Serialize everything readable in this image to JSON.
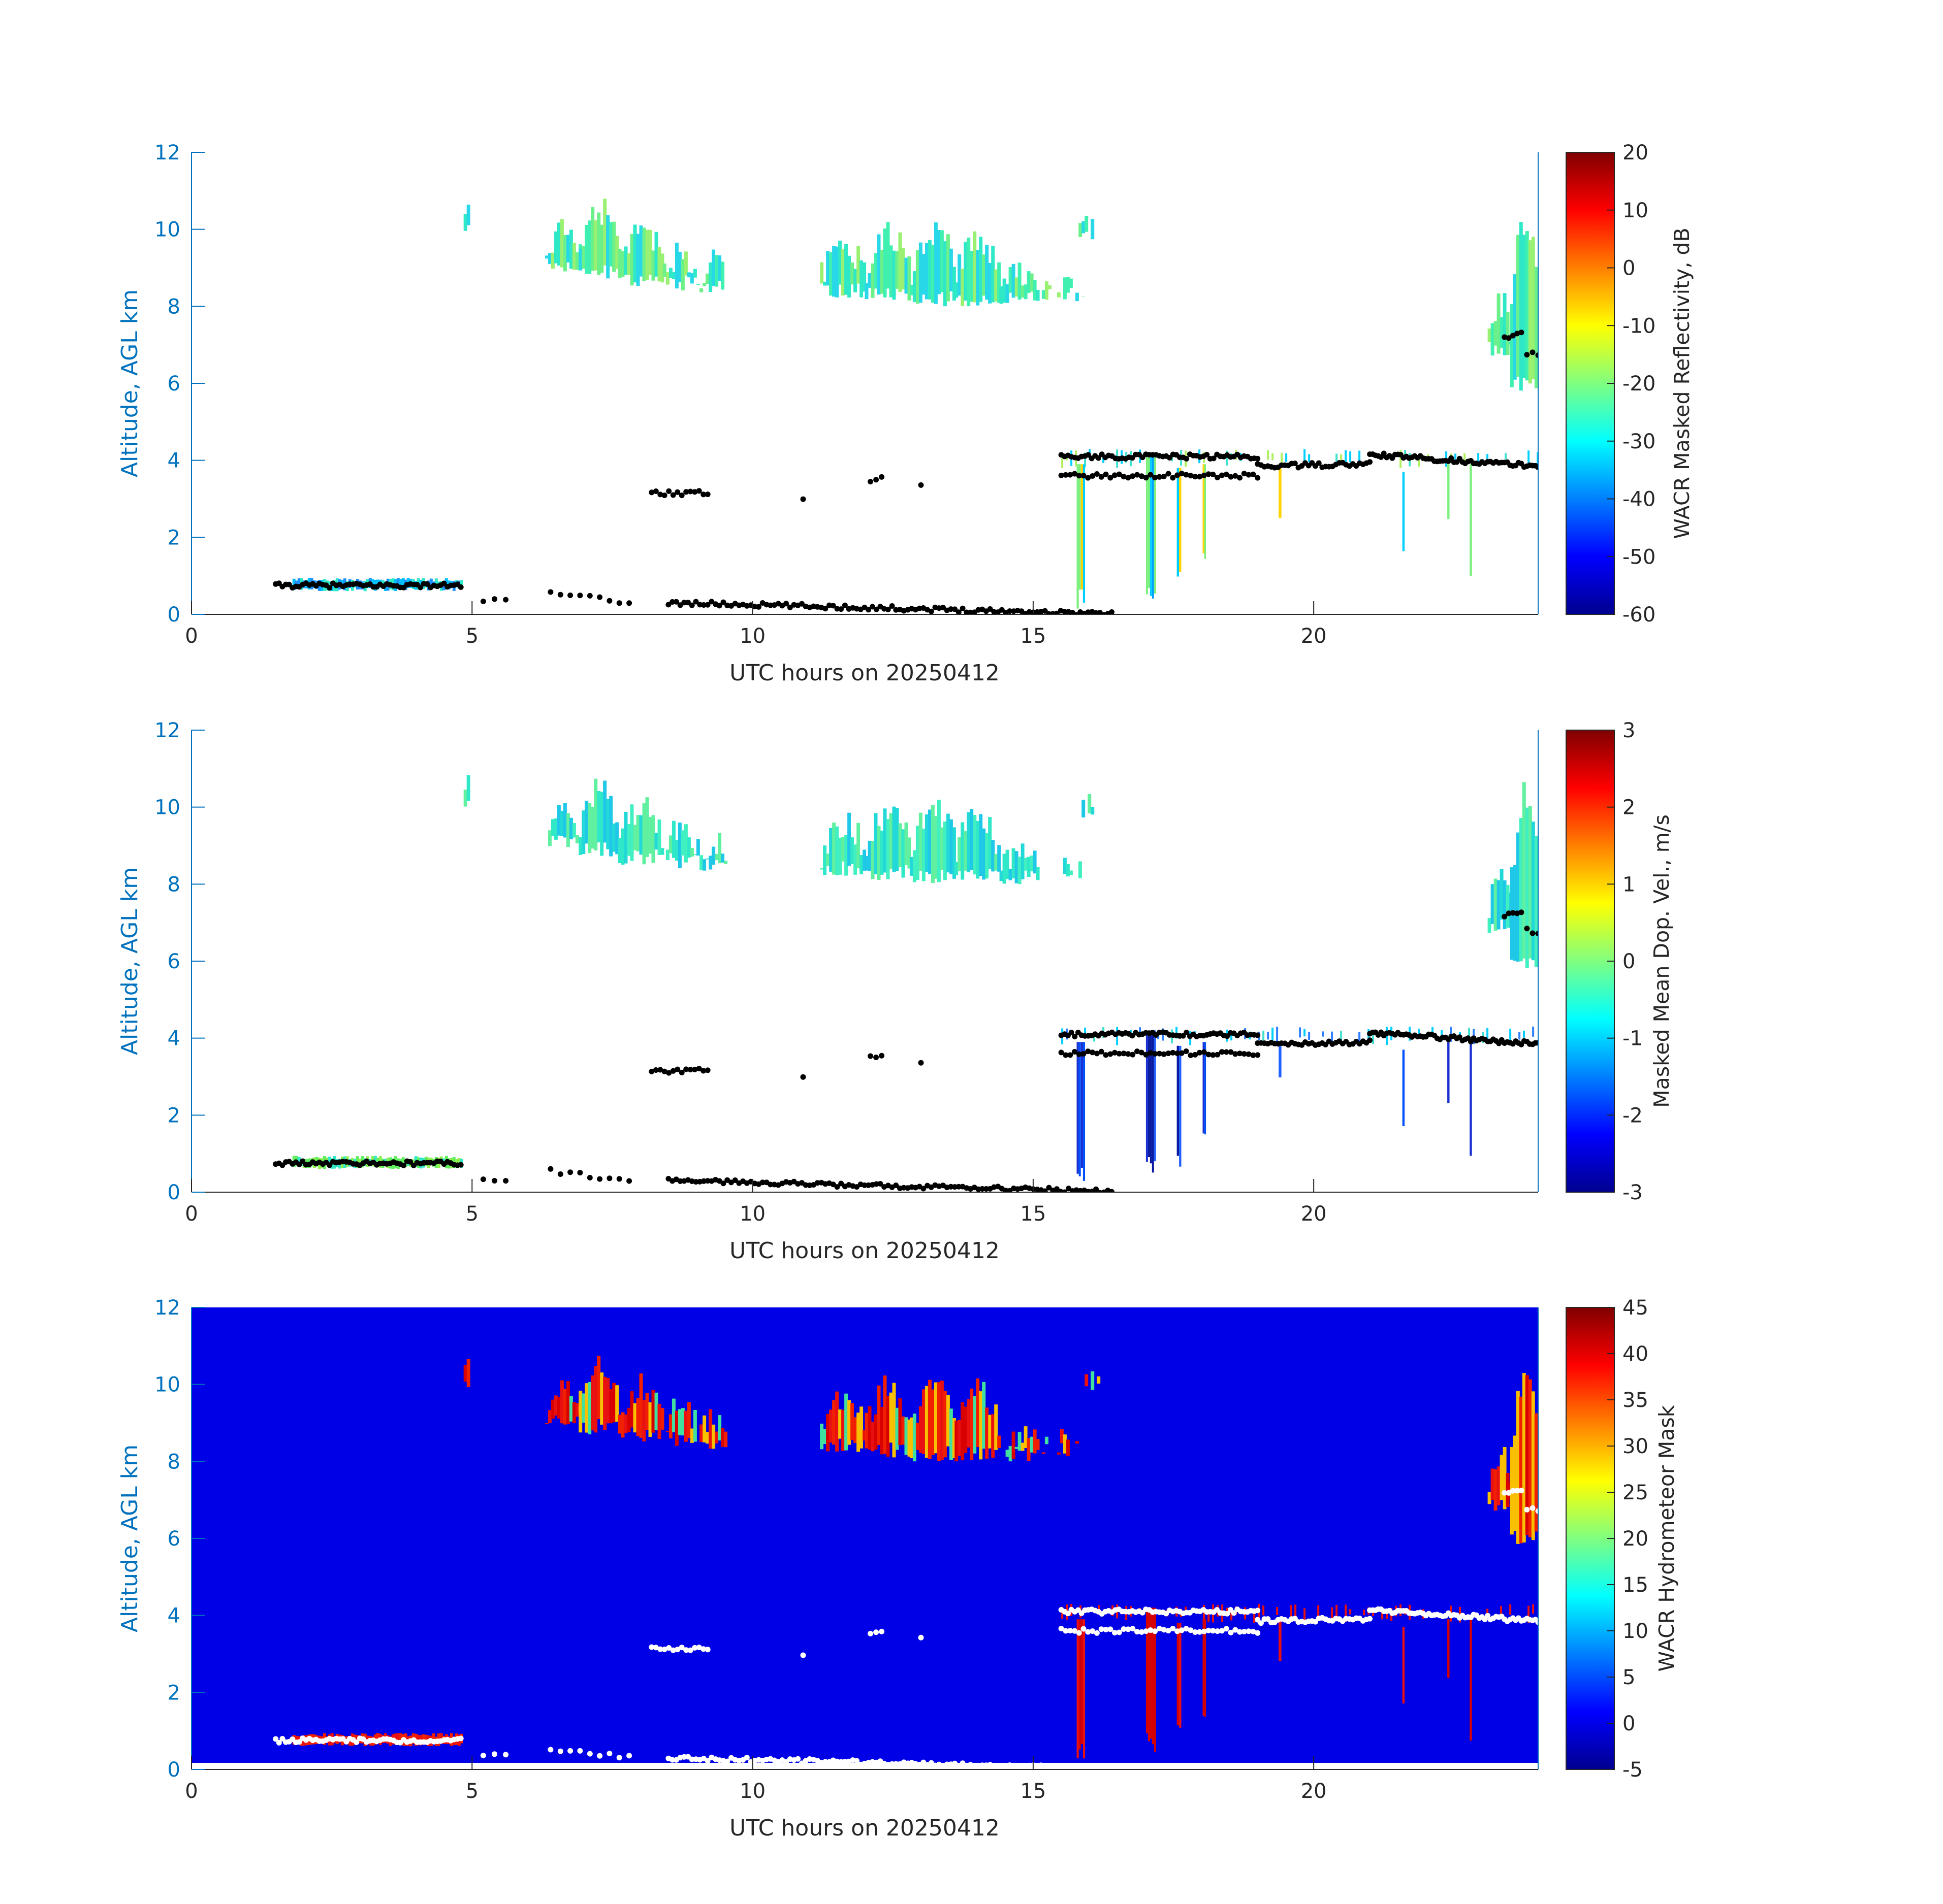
{
  "figure": {
    "type": "radar-time-height",
    "date": "20250412"
  },
  "chart_data": [
    {
      "type": "heatmap",
      "field": "reflectivity",
      "xlabel": "UTC hours on 20250412",
      "ylabel": "Altitude, AGL km",
      "xlim": [
        0,
        24
      ],
      "ylim": [
        0,
        12
      ],
      "xticks": [
        0,
        5,
        10,
        15,
        20
      ],
      "yticks": [
        0,
        2,
        4,
        6,
        8,
        10,
        12
      ],
      "background": "#ffffff",
      "colorbar": {
        "label": "WACR Masked Reflectivity, dB",
        "colormap": "jet",
        "range": [
          -60,
          20
        ],
        "ticks": [
          -60,
          -50,
          -40,
          -30,
          -20,
          -10,
          0,
          10,
          20
        ]
      }
    },
    {
      "type": "heatmap",
      "field": "doppler_velocity",
      "xlabel": "UTC hours on 20250412",
      "ylabel": "Altitude, AGL km",
      "xlim": [
        0,
        24
      ],
      "ylim": [
        0,
        12
      ],
      "xticks": [
        0,
        5,
        10,
        15,
        20
      ],
      "yticks": [
        0,
        2,
        4,
        6,
        8,
        10,
        12
      ],
      "background": "#ffffff",
      "colorbar": {
        "label": "Masked Mean Dop. Vel., m/s",
        "colormap": "jet",
        "range": [
          -3,
          3
        ],
        "ticks": [
          -3,
          -2,
          -1,
          0,
          1,
          2,
          3
        ]
      }
    },
    {
      "type": "heatmap",
      "field": "hydrometeor_mask",
      "xlabel": "UTC hours on 20250412",
      "ylabel": "Altitude, AGL km",
      "xlim": [
        0,
        24
      ],
      "ylim": [
        0,
        12
      ],
      "xticks": [
        0,
        5,
        10,
        15,
        20
      ],
      "yticks": [
        0,
        2,
        4,
        6,
        8,
        10,
        12
      ],
      "background": "#0000E6",
      "colorbar": {
        "label": "WACR Hydrometeor Mask",
        "colormap": "jet",
        "range": [
          -5,
          45
        ],
        "ticks": [
          -5,
          0,
          5,
          10,
          15,
          20,
          25,
          30,
          35,
          40,
          45
        ]
      }
    }
  ],
  "cloud_features": {
    "upper_cirrus": [
      {
        "t0": 4.85,
        "t1": 4.95,
        "z0": 9.9,
        "z1": 11.2
      },
      {
        "t0": 6.3,
        "t1": 6.9,
        "z0": 8.9,
        "z1": 10.5
      },
      {
        "t0": 6.9,
        "t1": 7.6,
        "z0": 8.7,
        "z1": 10.9
      },
      {
        "t0": 7.6,
        "t1": 8.4,
        "z0": 8.5,
        "z1": 10.4
      },
      {
        "t0": 8.4,
        "t1": 9.0,
        "z0": 8.4,
        "z1": 9.8
      },
      {
        "t0": 9.0,
        "t1": 9.5,
        "z0": 8.3,
        "z1": 9.5
      },
      {
        "t0": 11.2,
        "t1": 12.0,
        "z0": 8.2,
        "z1": 10.0
      },
      {
        "t0": 12.0,
        "t1": 12.8,
        "z0": 8.1,
        "z1": 10.3
      },
      {
        "t0": 12.8,
        "t1": 13.6,
        "z0": 8.0,
        "z1": 10.4
      },
      {
        "t0": 13.6,
        "t1": 14.4,
        "z0": 8.0,
        "z1": 10.2
      },
      {
        "t0": 14.4,
        "t1": 15.1,
        "z0": 8.0,
        "z1": 9.2
      },
      {
        "t0": 15.1,
        "t1": 15.9,
        "z0": 8.1,
        "z1": 8.9
      },
      {
        "t0": 15.7,
        "t1": 16.2,
        "z0": 9.7,
        "z1": 10.4
      },
      {
        "t0": 23.1,
        "t1": 23.5,
        "z0": 6.7,
        "z1": 8.5
      },
      {
        "t0": 23.5,
        "t1": 24.0,
        "z0": 5.8,
        "z1": 10.7
      }
    ],
    "low_layer": [
      {
        "t0": 1.8,
        "t1": 4.8,
        "z0": 0.6,
        "z1": 0.95
      }
    ],
    "fallstreaks": [
      {
        "t": 15.85,
        "z0": 0.1,
        "z1": 3.9,
        "w": 0.15
      },
      {
        "t": 17.1,
        "z0": 0.4,
        "z1": 4.2,
        "w": 0.18
      },
      {
        "t": 17.6,
        "z0": 0.6,
        "z1": 3.8,
        "w": 0.08
      },
      {
        "t": 18.05,
        "z0": 1.2,
        "z1": 3.9,
        "w": 0.06
      },
      {
        "t": 19.4,
        "z0": 2.5,
        "z1": 3.9,
        "w": 0.05
      },
      {
        "t": 21.6,
        "z0": 1.3,
        "z1": 3.7,
        "w": 0.04
      },
      {
        "t": 22.4,
        "z0": 2.0,
        "z1": 3.9,
        "w": 0.04
      },
      {
        "t": 22.8,
        "z0": 0.7,
        "z1": 3.9,
        "w": 0.04
      }
    ],
    "mid_layer": [
      {
        "t0": 15.5,
        "t1": 24.0,
        "z0": 3.8,
        "z1": 4.3
      }
    ]
  },
  "ceilometer_base": {
    "marker_color_panels_1_2": "#000000",
    "marker_color_panel_3": "#ffffff",
    "segments": [
      {
        "t0": 1.5,
        "t1": 4.8,
        "z0": 0.75,
        "z1": 0.75,
        "dt": 0.06
      },
      {
        "t0": 5.2,
        "t1": 5.6,
        "z0": 0.35,
        "z1": 0.35,
        "dt": 0.2
      },
      {
        "t0": 6.4,
        "t1": 7.8,
        "z0": 0.55,
        "z1": 0.3,
        "dt": 0.18
      },
      {
        "t0": 8.5,
        "t1": 16.4,
        "z0": 0.3,
        "z1": 0.02,
        "dt": 0.07
      },
      {
        "t0": 8.2,
        "t1": 9.2,
        "z0": 3.15,
        "z1": 3.15,
        "dt": 0.08
      },
      {
        "t0": 10.9,
        "t1": 10.9,
        "z0": 3.0,
        "z1": 3.0,
        "dt": 1
      },
      {
        "t0": 12.1,
        "t1": 12.3,
        "z0": 3.5,
        "z1": 3.6,
        "dt": 0.1
      },
      {
        "t0": 13.0,
        "t1": 13.0,
        "z0": 3.4,
        "z1": 3.4,
        "dt": 1
      },
      {
        "t0": 15.5,
        "t1": 19.0,
        "z0": 4.1,
        "z1": 4.1,
        "dt": 0.06
      },
      {
        "t0": 15.5,
        "t1": 19.0,
        "z0": 3.6,
        "z1": 3.6,
        "dt": 0.08
      },
      {
        "t0": 19.0,
        "t1": 21.0,
        "z0": 3.85,
        "z1": 3.9,
        "dt": 0.06
      },
      {
        "t0": 21.0,
        "t1": 24.0,
        "z0": 4.15,
        "z1": 3.85,
        "dt": 0.05
      },
      {
        "t0": 23.4,
        "t1": 23.7,
        "z0": 7.2,
        "z1": 7.3,
        "dt": 0.08
      },
      {
        "t0": 23.8,
        "t1": 24.0,
        "z0": 6.8,
        "z1": 6.7,
        "dt": 0.08
      }
    ]
  }
}
